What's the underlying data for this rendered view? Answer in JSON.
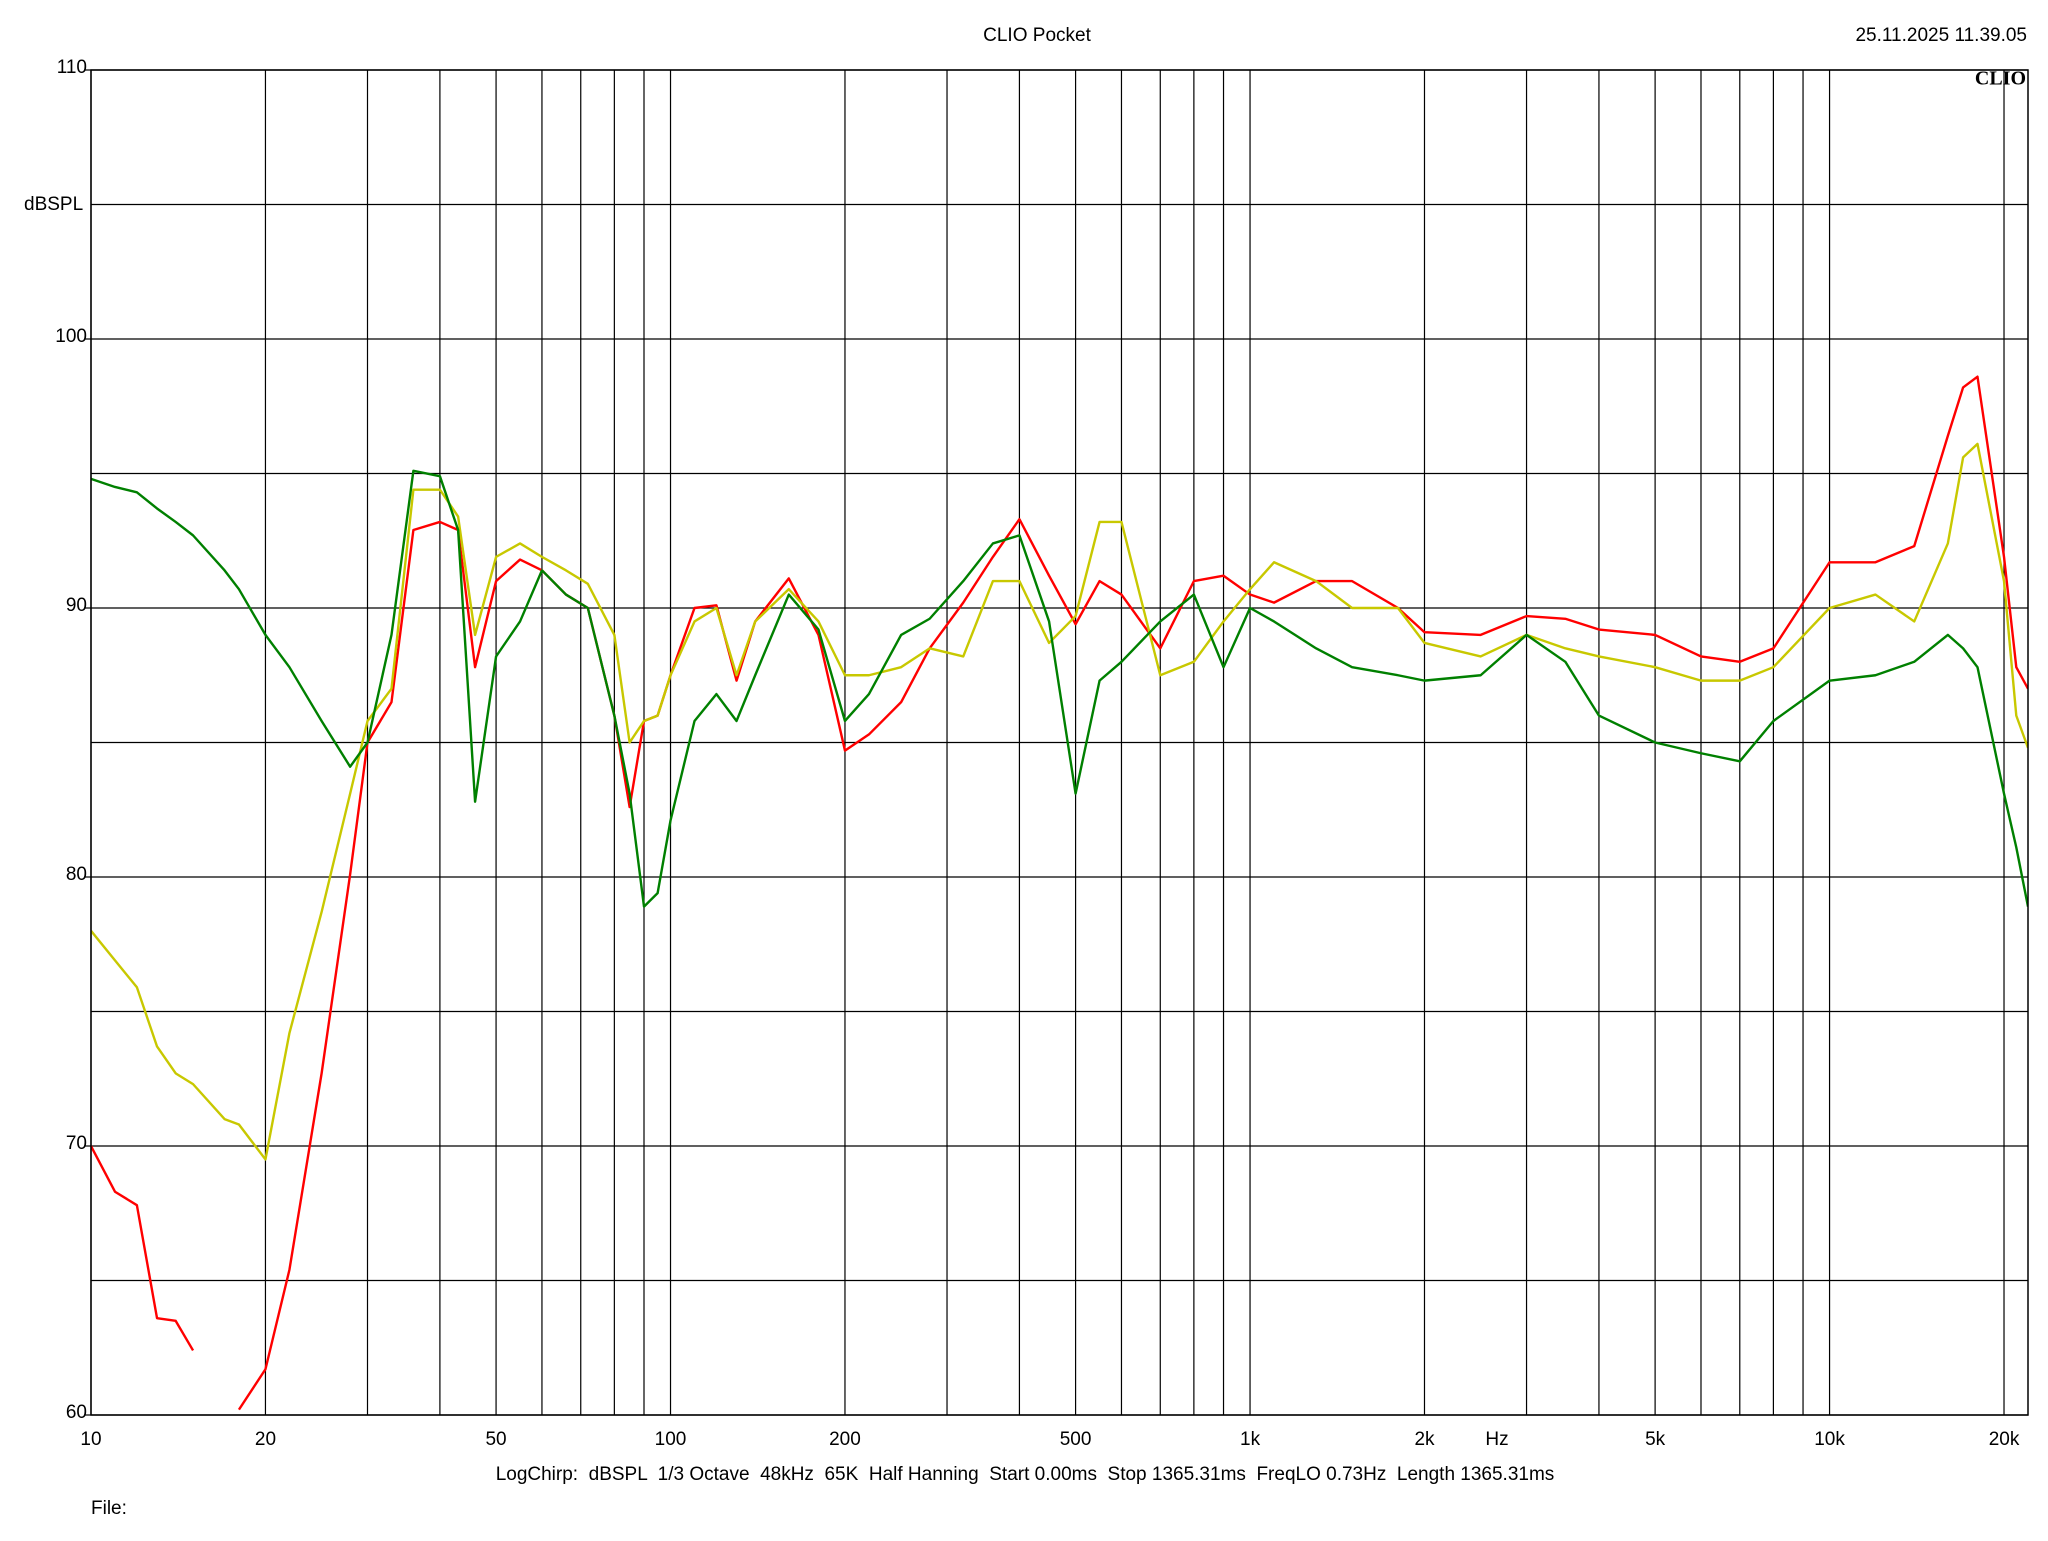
{
  "chart_data": {
    "type": "line",
    "title": "CLIO Pocket",
    "timestamp": "25.11.2025 11.39.05",
    "logo": "CLIO",
    "y_label": "dBSPL",
    "x_label": "Hz",
    "footer": "LogChirp:  dBSPL  1/3 Octave  48kHz  65K  Half Hanning  Start 0.00ms  Stop 1365.31ms  FreqLO 0.73Hz  Length 1365.31ms",
    "file_label": "File:",
    "x_log": true,
    "grid": true,
    "xlim": [
      10,
      22000
    ],
    "ylim": [
      60,
      110
    ],
    "xticks": [
      10,
      20,
      50,
      100,
      200,
      500,
      {
        "value": 1000,
        "label": "1k"
      },
      {
        "value": 2000,
        "label": "2k"
      },
      {
        "value": 5000,
        "label": "5k"
      },
      {
        "value": 10000,
        "label": "10k"
      },
      {
        "value": 20000,
        "label": "20k"
      }
    ],
    "xgrid": [
      30,
      40,
      60,
      70,
      80,
      90,
      300,
      400,
      600,
      700,
      800,
      900,
      3000,
      4000,
      6000,
      7000,
      8000,
      9000
    ],
    "yticks": [
      60,
      70,
      80,
      90,
      100,
      110
    ],
    "ygrid": [
      65,
      75,
      85,
      95,
      105
    ],
    "x": [
      10,
      11,
      12,
      13,
      14,
      15,
      17,
      18,
      20,
      22,
      25,
      28,
      30,
      33,
      36,
      40,
      43,
      46,
      50,
      55,
      60,
      66,
      72,
      80,
      85,
      90,
      95,
      100,
      110,
      120,
      130,
      140,
      160,
      180,
      200,
      220,
      250,
      280,
      320,
      360,
      400,
      450,
      500,
      550,
      600,
      700,
      800,
      900,
      1000,
      1100,
      1300,
      1500,
      1800,
      2000,
      2500,
      3000,
      3500,
      4000,
      5000,
      6000,
      7000,
      8000,
      10000,
      12000,
      14000,
      16000,
      17000,
      18000,
      20000,
      21000,
      22000
    ],
    "series": [
      {
        "color": "#ff0000",
        "values": [
          70.0,
          68.3,
          67.8,
          63.6,
          63.5,
          62.4,
          null,
          60.2,
          61.7,
          65.4,
          72.7,
          80.1,
          85.0,
          86.5,
          92.9,
          93.2,
          92.9,
          87.8,
          91.0,
          91.8,
          91.4,
          90.5,
          90.0,
          86.0,
          82.6,
          85.8,
          86.0,
          87.5,
          90.0,
          90.1,
          87.3,
          89.5,
          91.1,
          89.0,
          84.7,
          85.3,
          86.5,
          88.5,
          90.2,
          91.9,
          93.3,
          91.2,
          89.4,
          91.0,
          90.5,
          88.5,
          91.0,
          91.2,
          90.5,
          90.2,
          91.0,
          91.0,
          90.0,
          89.1,
          89.0,
          89.7,
          89.6,
          89.2,
          89.0,
          88.2,
          88.0,
          88.5,
          91.7,
          91.7,
          92.3,
          96.4,
          98.2,
          98.6,
          91.9,
          87.8,
          87.0
        ]
      },
      {
        "color": "#c8c800",
        "values": [
          78.0,
          76.9,
          75.9,
          73.7,
          72.7,
          72.3,
          71.0,
          70.8,
          69.5,
          74.2,
          78.7,
          83.1,
          85.8,
          87.0,
          94.4,
          94.4,
          93.4,
          89.0,
          91.9,
          92.4,
          91.9,
          91.4,
          90.9,
          89.0,
          85.0,
          85.8,
          86.0,
          87.5,
          89.5,
          90.0,
          87.5,
          89.5,
          90.7,
          89.5,
          87.5,
          87.5,
          87.8,
          88.5,
          88.2,
          91.0,
          91.0,
          88.7,
          89.7,
          93.2,
          93.2,
          87.5,
          88.0,
          89.5,
          90.7,
          91.7,
          91.0,
          90.0,
          90.0,
          88.7,
          88.2,
          89.0,
          88.5,
          88.2,
          87.8,
          87.3,
          87.3,
          87.8,
          90.0,
          90.5,
          89.5,
          92.4,
          95.6,
          96.1,
          91.0,
          86.0,
          84.8
        ]
      },
      {
        "color": "#008000",
        "values": [
          94.8,
          94.5,
          94.3,
          93.7,
          93.2,
          92.7,
          91.4,
          90.7,
          89.0,
          87.8,
          85.8,
          84.1,
          85.0,
          89.0,
          95.1,
          94.9,
          92.9,
          82.8,
          88.2,
          89.5,
          91.4,
          90.5,
          90.0,
          86.0,
          83.1,
          78.9,
          79.4,
          82.1,
          85.8,
          86.8,
          85.8,
          87.5,
          90.5,
          89.2,
          85.8,
          86.8,
          89.0,
          89.6,
          91.0,
          92.4,
          92.7,
          89.5,
          83.1,
          87.3,
          88.0,
          89.5,
          90.5,
          87.8,
          90.0,
          89.5,
          88.5,
          87.8,
          87.5,
          87.3,
          87.5,
          89.0,
          88.0,
          86.0,
          85.0,
          84.6,
          84.3,
          85.8,
          87.3,
          87.5,
          88.0,
          89.0,
          88.5,
          87.8,
          83.1,
          81.1,
          78.9
        ]
      }
    ]
  }
}
